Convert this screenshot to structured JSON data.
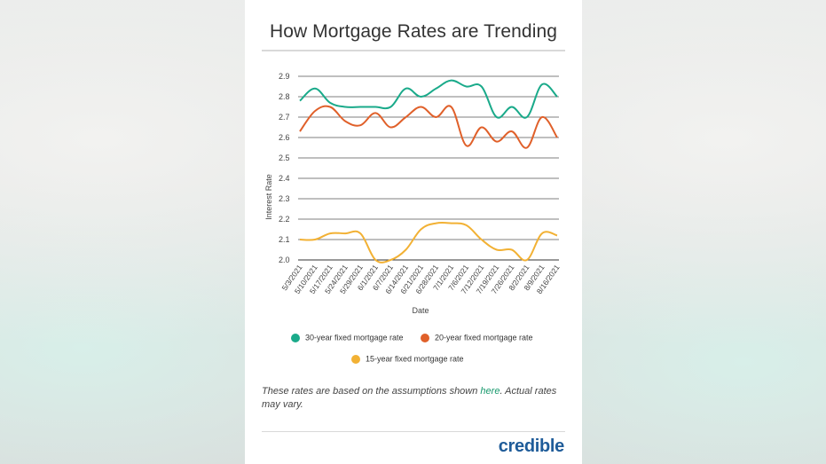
{
  "title": "How Mortgage Rates are Trending",
  "note": {
    "before": "These rates are based on the assumptions shown ",
    "link": "here",
    "after": ". Actual rates may vary."
  },
  "brand": "credible",
  "chart_data": {
    "type": "line",
    "title": "How Mortgage Rates are Trending",
    "xlabel": "Date",
    "ylabel": "Interest Rate",
    "ylim": [
      2.0,
      2.9
    ],
    "yticks": [
      "2.0",
      "2.1",
      "2.2",
      "2.3",
      "2.4",
      "2.5",
      "2.6",
      "2.7",
      "2.8",
      "2.9"
    ],
    "categories": [
      "5/3/2021",
      "5/10/2021",
      "5/17/2021",
      "5/24/2021",
      "5/29/2021",
      "6/1/2021",
      "6/7/2021",
      "6/14/2021",
      "6/21/2021",
      "6/28/2021",
      "7/1/2021",
      "7/6/2021",
      "7/12/2021",
      "7/19/2021",
      "7/26/2021",
      "8/2/2021",
      "8/9/2021",
      "8/16/2021"
    ],
    "grid": true,
    "legend_position": "bottom",
    "series": [
      {
        "name": "30-year fixed mortgage rate",
        "color": "#1aaa8a",
        "values": [
          2.78,
          2.84,
          2.77,
          2.75,
          2.75,
          2.75,
          2.75,
          2.84,
          2.8,
          2.84,
          2.88,
          2.85,
          2.85,
          2.7,
          2.75,
          2.7,
          2.86,
          2.8
        ]
      },
      {
        "name": "20-year fixed mortgage rate",
        "color": "#e0602a",
        "values": [
          2.63,
          2.73,
          2.75,
          2.68,
          2.66,
          2.72,
          2.65,
          2.7,
          2.75,
          2.7,
          2.75,
          2.56,
          2.65,
          2.58,
          2.63,
          2.55,
          2.7,
          2.6
        ]
      },
      {
        "name": "15-year fixed mortgage rate",
        "color": "#f2b134",
        "values": [
          2.1,
          2.1,
          2.13,
          2.13,
          2.13,
          2.0,
          2.0,
          2.05,
          2.15,
          2.18,
          2.18,
          2.17,
          2.1,
          2.05,
          2.05,
          2.0,
          2.13,
          2.12
        ]
      }
    ]
  }
}
